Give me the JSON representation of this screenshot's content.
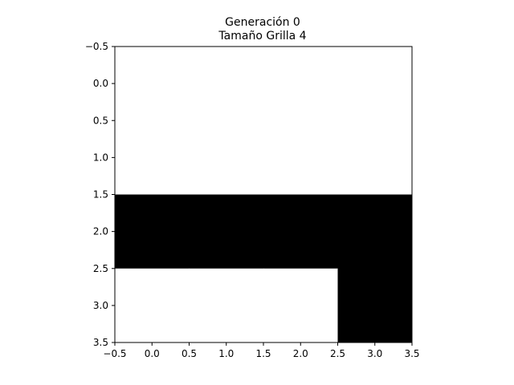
{
  "chart_data": {
    "type": "heatmap",
    "title_lines": [
      "Generación 0",
      "Tamaño Grilla 4"
    ],
    "xlabel": "",
    "ylabel": "",
    "grid_size": 4,
    "cells": [
      [
        0,
        0,
        0,
        0
      ],
      [
        0,
        0,
        0,
        0
      ],
      [
        1,
        1,
        1,
        1
      ],
      [
        0,
        0,
        0,
        1
      ]
    ],
    "xlim": [
      -0.5,
      3.5
    ],
    "ylim": [
      3.5,
      -0.5
    ],
    "xticks": [
      -0.5,
      0.0,
      0.5,
      1.0,
      1.5,
      2.0,
      2.5,
      3.0,
      3.5
    ],
    "xtick_labels": [
      "−0.5",
      "0.0",
      "0.5",
      "1.0",
      "1.5",
      "2.0",
      "2.5",
      "3.0",
      "3.5"
    ],
    "yticks": [
      -0.5,
      0.0,
      0.5,
      1.0,
      1.5,
      2.0,
      2.5,
      3.0,
      3.5
    ],
    "ytick_labels": [
      "−0.5",
      "0.0",
      "0.5",
      "1.0",
      "1.5",
      "2.0",
      "2.5",
      "3.0",
      "3.5"
    ],
    "grid": false,
    "colormap": {
      "dead": "#ffffff",
      "alive": "#000000"
    }
  }
}
